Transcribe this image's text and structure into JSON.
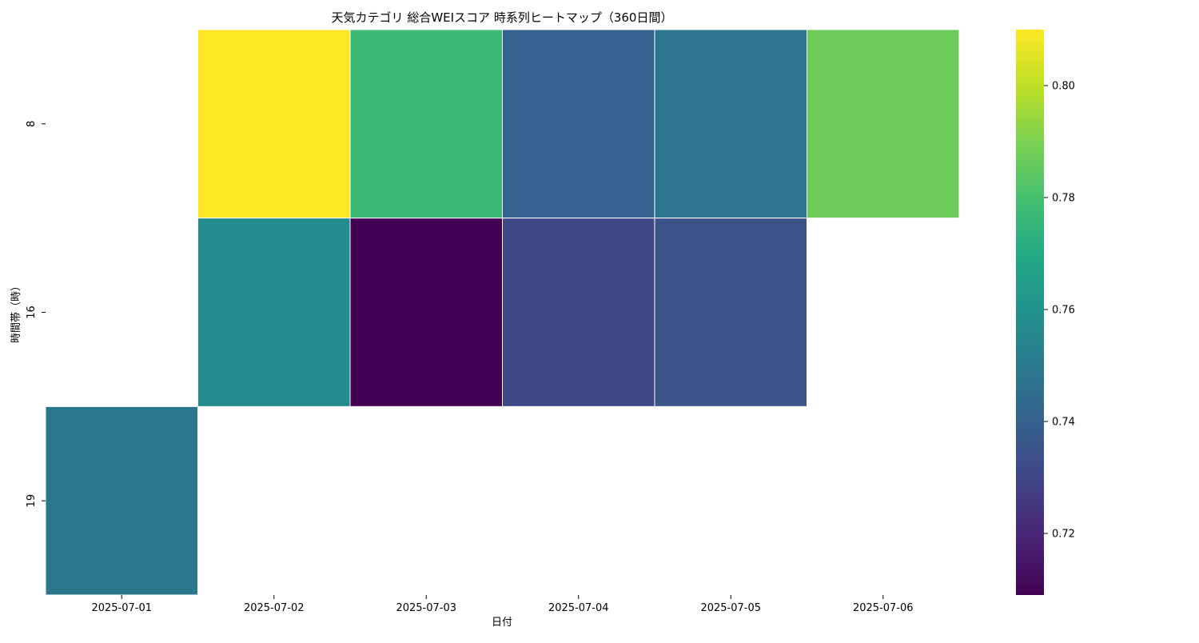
{
  "chart_data": {
    "type": "heatmap",
    "title": "天気カテゴリ 総合WEIスコア 時系列ヒートマップ（360日間）",
    "xlabel": "日付",
    "ylabel": "時間帯（時）",
    "x_categories": [
      "2025-07-01",
      "2025-07-02",
      "2025-07-03",
      "2025-07-04",
      "2025-07-05",
      "2025-07-06"
    ],
    "y_categories": [
      "8",
      "16",
      "19"
    ],
    "values": [
      [
        null,
        0.81,
        0.777,
        0.74,
        0.748,
        0.787
      ],
      [
        null,
        0.757,
        0.709,
        0.731,
        0.735,
        null
      ],
      [
        0.749,
        null,
        null,
        null,
        null,
        null
      ]
    ],
    "colormap": "viridis",
    "colorbar": {
      "min": 0.709,
      "max": 0.81,
      "ticks": [
        "0.72",
        "0.74",
        "0.76",
        "0.78",
        "0.80"
      ]
    },
    "grid": false,
    "missing_color": "#ffffff"
  }
}
